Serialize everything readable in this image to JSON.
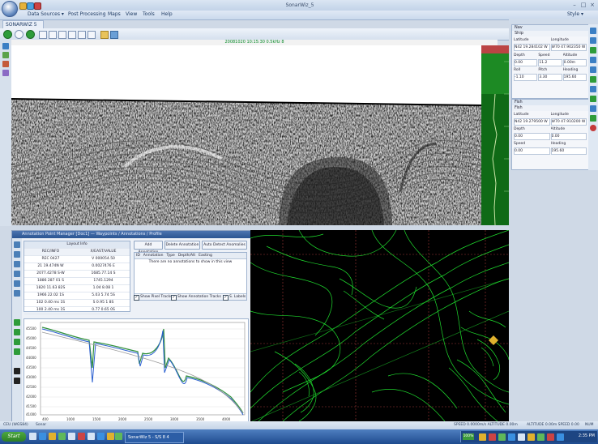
{
  "window": {
    "title": "SonarWiz_5",
    "min": "–",
    "max": "□",
    "close": "×",
    "style_label": "Style ▾"
  },
  "menu": [
    "Data Sources ▾",
    "Post Processing",
    "Maps",
    "View",
    "Tools",
    "Help"
  ],
  "document_tab": "SONARWIZ 5",
  "sonar": {
    "header": "20081020 10:15:30 0.5kHz 8"
  },
  "nav_top": {
    "title": "Nav",
    "sub": "Ship",
    "headers": [
      "Latitude",
      "Longitude"
    ],
    "values": [
      "N42 19.284102 W",
      "W70 47.902350 W"
    ],
    "row2_labels": [
      "Depth",
      "Speed",
      "Altitude"
    ],
    "row2_values": [
      "0.00",
      "11.2",
      "0.00m"
    ],
    "row3_labels": [
      "Roll",
      "Pitch",
      "Heading"
    ],
    "row3_values": [
      "-1.10",
      "3.30",
      "195.60"
    ]
  },
  "nav_bottom": {
    "title": "Fish",
    "sub": "Fish",
    "headers": [
      "Latitude",
      "Longitude"
    ],
    "values": [
      "N42 19.279500 W",
      "W70 47.910200 W"
    ],
    "row2_labels": [
      "Depth",
      "Altitude"
    ],
    "row2_values": [
      "0.00",
      "0.00"
    ],
    "row3_labels": [
      "Speed",
      "Heading"
    ],
    "row3_values": [
      "0.00",
      "195.60"
    ]
  },
  "bottom_panel": {
    "title": "Annotation Point Manager [Doc1] — Waypoints / Annotations / Profile",
    "waypoints_header": "Layout Info",
    "waypoints_columns": [
      "REC/INFO",
      "X/EAST/VALUE"
    ],
    "waypoints": [
      [
        "REC 0427",
        "V 000054.50"
      ],
      [
        "21 19.474N W",
        "0.0027476 E"
      ],
      [
        "2077.4278 S-W",
        "1685.77.14 S"
      ],
      [
        "1886 287 01 S",
        "1745.1294"
      ],
      [
        "1820 11.63 82S",
        "1.04 8.08 1"
      ],
      [
        "1966 22.02 1S",
        "5.03 5.74 5S"
      ],
      [
        "102 0.40 ms 1S",
        "S 0.95 1 8S"
      ],
      [
        "100 2.40 ms 1S",
        "0.77 0.65 0S"
      ]
    ],
    "buttons": [
      "Add Annotation",
      "Delete Annotation",
      "Auto Detect Anomalies"
    ],
    "anno_columns": [
      "ID",
      "Annotation",
      "Type",
      "Depth/Alt",
      "Easting"
    ],
    "anno_message": "There are no annotations to show in this view",
    "checkboxes": [
      "Show Pixel Tracks",
      "Show Annotation Tracks",
      "S. Labels"
    ]
  },
  "profile": {
    "y_ticks": [
      "45500",
      "45000",
      "44500",
      "44000",
      "43500",
      "43000",
      "42500",
      "42000",
      "41500",
      "41000"
    ],
    "x_ticks": [
      "400",
      "1000",
      "1500",
      "2000",
      "2500",
      "3000",
      "3500",
      "4000"
    ]
  },
  "statusbar": {
    "left": "CEU (WGS84)",
    "left2": "Sonar",
    "right1": "SPEED 0.0000m/s ALTITUDE 0.00m",
    "right2": "ALTITUDE 0.00m SPEED 0.00",
    "right3": "NUM"
  },
  "taskbar": {
    "start": "Start",
    "app": "SonarWiz 5 - S/S 8 4",
    "zoom": "100%",
    "clock": "2:35 PM"
  },
  "colors": {
    "accent": "#2b5592",
    "sonar_scale": "#0f6a16",
    "bathy_bg": "#000000",
    "contour": "#1fdc2e"
  }
}
